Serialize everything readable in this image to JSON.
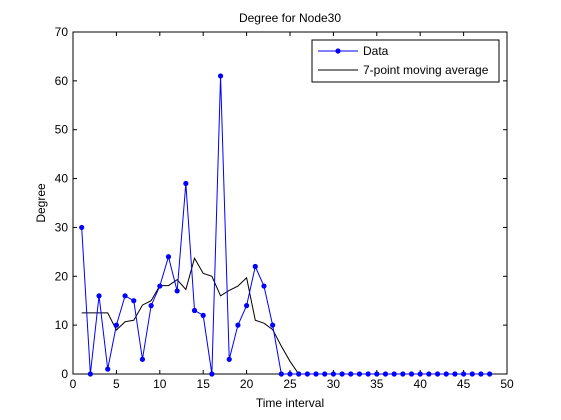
{
  "chart_data": {
    "type": "line",
    "title": "Degree for Node30",
    "xlabel": "Time interval",
    "ylabel": "Degree",
    "xlim": [
      0,
      50
    ],
    "ylim": [
      0,
      70
    ],
    "xticks": [
      0,
      5,
      10,
      15,
      20,
      25,
      30,
      35,
      40,
      45,
      50
    ],
    "yticks": [
      0,
      10,
      20,
      30,
      40,
      50,
      60,
      70
    ],
    "grid": false,
    "legend_position": "top-right",
    "series": [
      {
        "name": "Data",
        "color": "#0000ff",
        "marker": "dot",
        "x": [
          1,
          2,
          3,
          4,
          5,
          6,
          7,
          8,
          9,
          10,
          11,
          12,
          13,
          14,
          15,
          16,
          17,
          18,
          19,
          20,
          21,
          22,
          23,
          24,
          25,
          26,
          27,
          28,
          29,
          30,
          31,
          32,
          33,
          34,
          35,
          36,
          37,
          38,
          39,
          40,
          41,
          42,
          43,
          44,
          45,
          46,
          47,
          48
        ],
        "y": [
          30,
          0,
          16,
          1,
          10,
          16,
          15,
          3,
          14,
          18,
          24,
          17,
          39,
          13,
          12,
          0,
          61,
          3,
          10,
          14,
          22,
          18,
          10,
          0,
          0,
          0,
          0,
          0,
          0,
          0,
          0,
          0,
          0,
          0,
          0,
          0,
          0,
          0,
          0,
          0,
          0,
          0,
          0,
          0,
          0,
          0,
          0,
          0
        ]
      },
      {
        "name": "7-point moving average",
        "color": "#000000",
        "marker": "none",
        "x": [
          1,
          2,
          3,
          4,
          5,
          6,
          7,
          8,
          9,
          10,
          11,
          12,
          13,
          14,
          15,
          16,
          17,
          18,
          19,
          20,
          21,
          22,
          23,
          24,
          25,
          26,
          27,
          28,
          29,
          30,
          31,
          32,
          33,
          34,
          35,
          36,
          37,
          38,
          39,
          40,
          41,
          42,
          43,
          44,
          45,
          46,
          47,
          48
        ],
        "y": [
          12.5,
          12.5,
          12.5,
          12.5,
          9,
          10.7,
          11,
          14.1,
          15,
          18.1,
          18.1,
          19.3,
          17.3,
          23.7,
          20.6,
          20,
          16,
          17.1,
          18,
          19.7,
          11,
          10.4,
          9.1,
          5.7,
          2.6,
          0,
          0,
          0,
          0,
          0,
          0,
          0,
          0,
          0,
          0,
          0,
          0,
          0,
          0,
          0,
          0,
          0,
          0,
          0,
          0,
          0,
          0,
          0
        ]
      }
    ]
  }
}
